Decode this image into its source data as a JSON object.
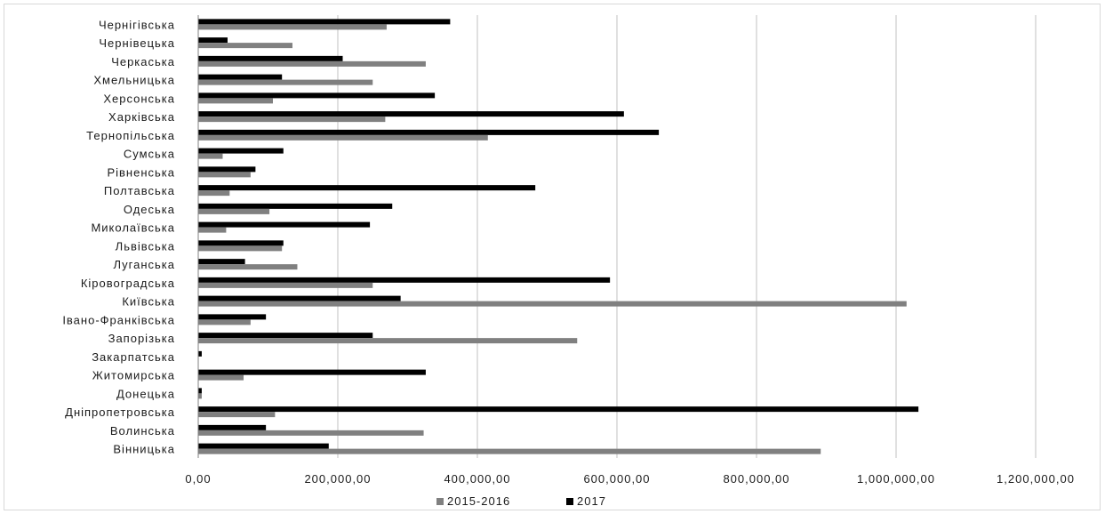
{
  "chart_data": {
    "type": "bar",
    "orientation": "horizontal",
    "categories": [
      "Вінницька",
      "Волинська",
      "Дніпропетровська",
      "Донецька",
      "Житомирська",
      "Закарпатська",
      "Запорізька",
      "Івано-Франківська",
      "Київська",
      "Кіровоградська",
      "Луганська",
      "Львівська",
      "Миколаївська",
      "Одеська",
      "Полтавська",
      "Рівненська",
      "Сумська",
      "Тернопільська",
      "Харківська",
      "Херсонська",
      "Хмельницька",
      "Черкаська",
      "Чернівецька",
      "Чернігівська"
    ],
    "series": [
      {
        "name": "2015-2016",
        "color": "#808080",
        "values": [
          892000,
          323000,
          110000,
          5000,
          65000,
          0,
          543000,
          75000,
          1015000,
          250000,
          142000,
          120000,
          40000,
          102000,
          45000,
          75000,
          35000,
          415000,
          268000,
          107000,
          250000,
          326000,
          135000,
          270000
        ]
      },
      {
        "name": "2017",
        "color": "#000000",
        "values": [
          187000,
          97000,
          1032000,
          5000,
          326000,
          5000,
          250000,
          97000,
          290000,
          590000,
          67000,
          122000,
          246000,
          278000,
          483000,
          82000,
          122000,
          660000,
          610000,
          339000,
          120000,
          207000,
          42000,
          361000
        ]
      }
    ],
    "xlim": [
      0,
      1200000
    ],
    "xticks": [
      "0,00",
      "200,000,00",
      "400,000,00",
      "600,000,00",
      "800,000,00",
      "1,000,000,00",
      "1,200,000,00"
    ],
    "grid": true,
    "legend_position": "bottom",
    "title": "",
    "xlabel": "",
    "ylabel": ""
  }
}
